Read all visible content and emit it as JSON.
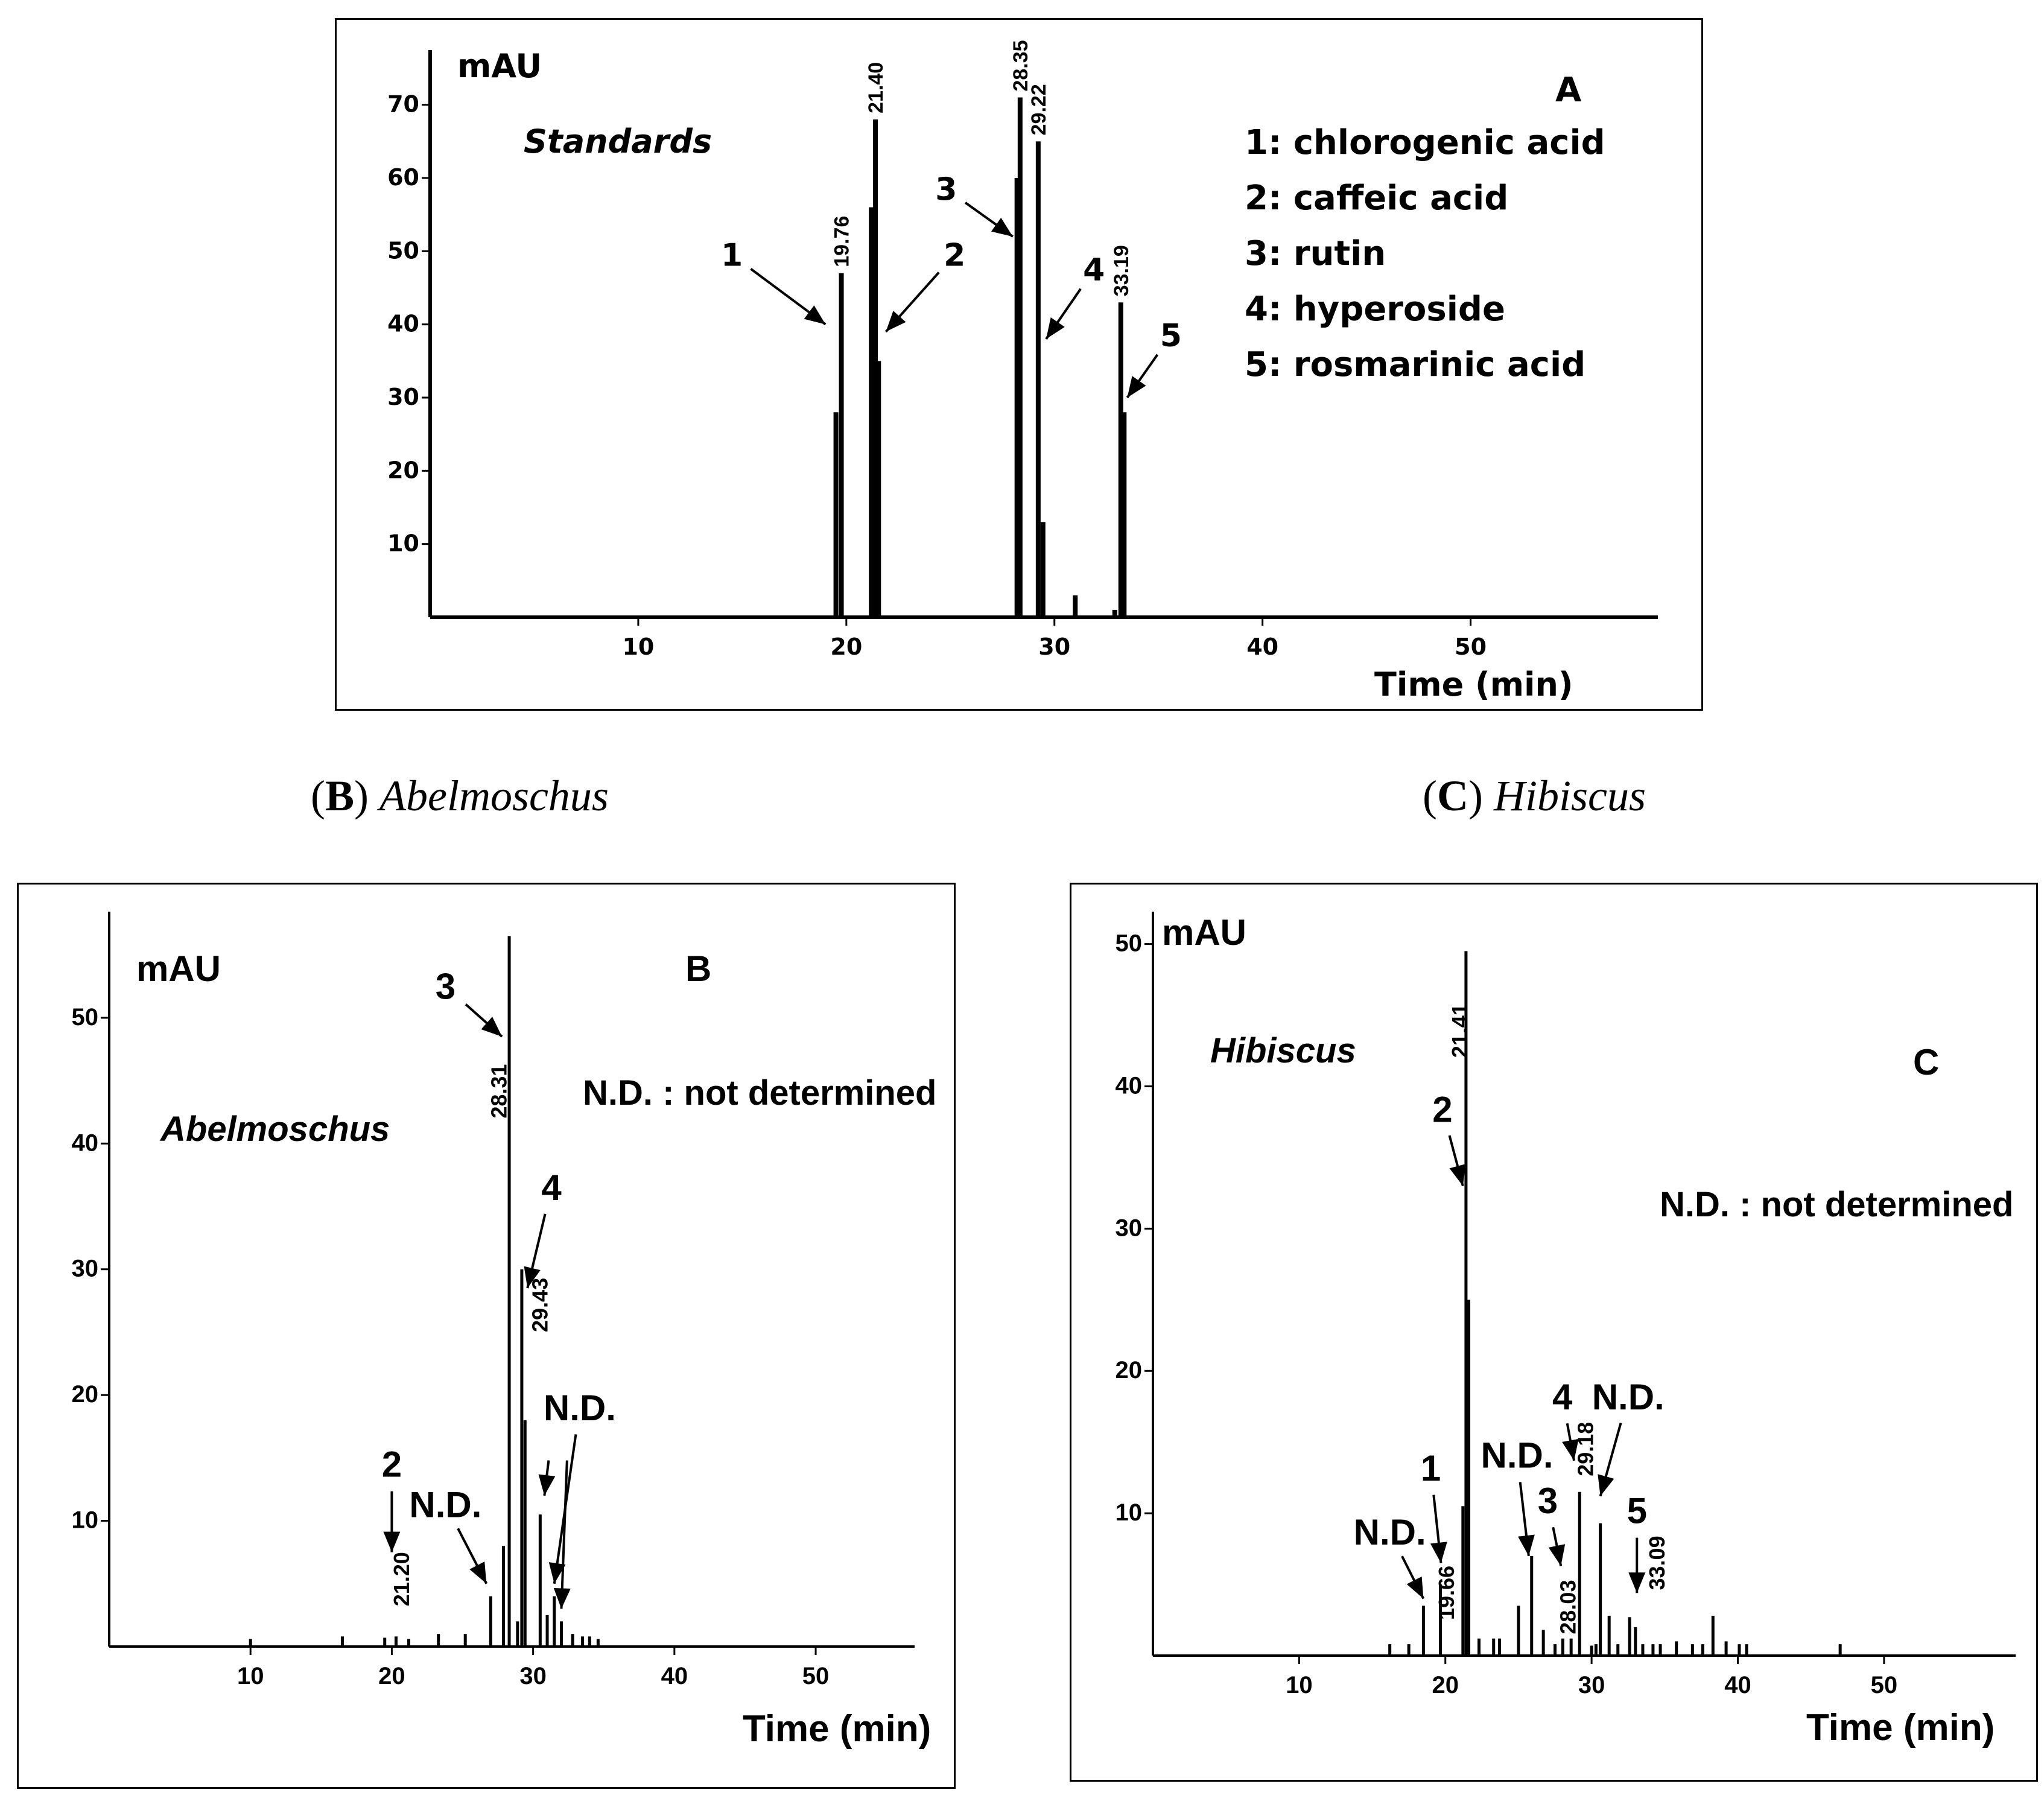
{
  "captions": {
    "b": {
      "open": "(",
      "letter": "B",
      "close": ")",
      "name": "Abelmoschus"
    },
    "c": {
      "open": "(",
      "letter": "C",
      "close": ")",
      "name": "Hibiscus"
    }
  },
  "chart_data": [
    {
      "type": "bar",
      "panel_letter": "A",
      "sample_label": "Standards",
      "ylabel": "mAU",
      "xlabel": "Time (min)",
      "xlim": [
        0,
        59
      ],
      "ylim": [
        0,
        75
      ],
      "xticks": [
        10,
        20,
        30,
        40,
        50
      ],
      "yticks": [
        10,
        20,
        30,
        40,
        50,
        60,
        70
      ],
      "legend": [
        "1: chlorogenic acid",
        "2: caffeic acid",
        "3: rutin",
        "4: hyperoside",
        "5: rosmarinic acid"
      ],
      "peaks": [
        {
          "x": 19.5,
          "y": 28
        },
        {
          "x": 19.76,
          "y": 47
        },
        {
          "x": 21.2,
          "y": 56
        },
        {
          "x": 21.4,
          "y": 68
        },
        {
          "x": 21.55,
          "y": 35
        },
        {
          "x": 28.2,
          "y": 60
        },
        {
          "x": 28.35,
          "y": 71
        },
        {
          "x": 29.22,
          "y": 65
        },
        {
          "x": 29.45,
          "y": 13
        },
        {
          "x": 31.0,
          "y": 3
        },
        {
          "x": 32.9,
          "y": 1
        },
        {
          "x": 33.19,
          "y": 43
        },
        {
          "x": 33.35,
          "y": 28
        }
      ],
      "peak_labels": [
        {
          "x": 19.76,
          "text": "19.76"
        },
        {
          "x": 21.4,
          "text": "21.40"
        },
        {
          "x": 28.35,
          "text": "28.35"
        },
        {
          "x": 29.22,
          "text": "29.22"
        },
        {
          "x": 33.19,
          "text": "33.19"
        }
      ],
      "annotations": [
        {
          "text": "1",
          "tx": 14.5,
          "ty": 48,
          "hx": 19.0,
          "hy": 40
        },
        {
          "text": "2",
          "tx": 25.2,
          "ty": 48,
          "hx": 21.9,
          "hy": 39
        },
        {
          "text": "3",
          "tx": 24.8,
          "ty": 57,
          "hx": 28.0,
          "hy": 52
        },
        {
          "text": "4",
          "tx": 31.9,
          "ty": 46,
          "hx": 29.6,
          "hy": 38
        },
        {
          "text": "5",
          "tx": 35.6,
          "ty": 37,
          "hx": 33.5,
          "hy": 30
        }
      ]
    },
    {
      "type": "bar",
      "panel_letter": "B",
      "sample_label": "Abelmoschus",
      "ylabel": "mAU",
      "xlabel": "Time (min)",
      "note": "N.D. : not determined",
      "xlim": [
        0,
        57
      ],
      "ylim": [
        0,
        57
      ],
      "xticks": [
        10,
        20,
        30,
        40,
        50
      ],
      "yticks": [
        10,
        20,
        30,
        40,
        50
      ],
      "peaks": [
        {
          "x": 10.0,
          "y": 0.6
        },
        {
          "x": 16.5,
          "y": 0.8
        },
        {
          "x": 19.5,
          "y": 0.7
        },
        {
          "x": 20.3,
          "y": 0.8
        },
        {
          "x": 21.2,
          "y": 0.6
        },
        {
          "x": 23.3,
          "y": 1.0
        },
        {
          "x": 25.2,
          "y": 1.0
        },
        {
          "x": 27.0,
          "y": 4.0
        },
        {
          "x": 27.9,
          "y": 8.0
        },
        {
          "x": 28.31,
          "y": 56.5
        },
        {
          "x": 28.9,
          "y": 2.0
        },
        {
          "x": 29.2,
          "y": 30.0
        },
        {
          "x": 29.43,
          "y": 18.0
        },
        {
          "x": 30.5,
          "y": 10.5
        },
        {
          "x": 31.0,
          "y": 2.5
        },
        {
          "x": 31.5,
          "y": 4.0
        },
        {
          "x": 32.0,
          "y": 2.0
        },
        {
          "x": 32.8,
          "y": 1.0
        },
        {
          "x": 33.5,
          "y": 0.8
        },
        {
          "x": 34.0,
          "y": 0.8
        },
        {
          "x": 34.6,
          "y": 0.6
        }
      ],
      "peak_labels": [
        {
          "x": 20.7,
          "text": "21.20",
          "y": 3.2
        },
        {
          "x": 27.6,
          "text": "28.31",
          "y": 42
        },
        {
          "x": 30.5,
          "text": "29.43",
          "y": 25
        }
      ],
      "annotations": [
        {
          "text": "2",
          "tx": 20.0,
          "ty": 13.5,
          "hx": 20.0,
          "hy": 7.5
        },
        {
          "text": "N.D.",
          "tx": 23.8,
          "ty": 10.3,
          "hx": 26.7,
          "hy": 5.0
        },
        {
          "text": "3",
          "tx": 23.8,
          "ty": 51.5,
          "hx": 27.8,
          "hy": 48.5
        },
        {
          "text": "4",
          "tx": 31.3,
          "ty": 35.5,
          "hx": 29.6,
          "hy": 28.5
        },
        {
          "text": "N.D.",
          "tx": 33.3,
          "ty": 18.0,
          "hx": 31.5,
          "hy": 5.0
        }
      ],
      "extra_arrows": [
        {
          "hx": 30.8,
          "hy": 12.0,
          "fx": 31.1,
          "fy": 14.8
        },
        {
          "hx": 32.0,
          "hy": 3.0,
          "fx": 32.4,
          "fy": 14.8
        }
      ]
    },
    {
      "type": "bar",
      "panel_letter": "C",
      "sample_label": "Hibiscus",
      "ylabel": "mAU",
      "xlabel": "Time (min)",
      "note": "N.D. : not determined",
      "xlim": [
        0,
        59
      ],
      "ylim": [
        0,
        51
      ],
      "xticks": [
        10,
        20,
        30,
        40,
        50
      ],
      "yticks": [
        10,
        20,
        30,
        40,
        50
      ],
      "peaks": [
        {
          "x": 16.2,
          "y": 0.8
        },
        {
          "x": 17.5,
          "y": 0.8
        },
        {
          "x": 18.5,
          "y": 3.5
        },
        {
          "x": 19.66,
          "y": 5.0
        },
        {
          "x": 21.2,
          "y": 10.5
        },
        {
          "x": 21.41,
          "y": 49.5
        },
        {
          "x": 21.6,
          "y": 25.0
        },
        {
          "x": 22.3,
          "y": 1.2
        },
        {
          "x": 23.3,
          "y": 1.2
        },
        {
          "x": 23.7,
          "y": 1.2
        },
        {
          "x": 25.0,
          "y": 3.5
        },
        {
          "x": 25.9,
          "y": 7.0
        },
        {
          "x": 26.7,
          "y": 1.8
        },
        {
          "x": 27.5,
          "y": 0.8
        },
        {
          "x": 28.03,
          "y": 1.2
        },
        {
          "x": 28.6,
          "y": 1.2
        },
        {
          "x": 29.18,
          "y": 11.5
        },
        {
          "x": 30.0,
          "y": 0.7
        },
        {
          "x": 30.3,
          "y": 0.8
        },
        {
          "x": 30.6,
          "y": 9.3
        },
        {
          "x": 31.2,
          "y": 2.8
        },
        {
          "x": 31.8,
          "y": 0.8
        },
        {
          "x": 32.6,
          "y": 2.7
        },
        {
          "x": 33.0,
          "y": 2.0
        },
        {
          "x": 33.5,
          "y": 0.8
        },
        {
          "x": 34.2,
          "y": 0.8
        },
        {
          "x": 34.7,
          "y": 0.8
        },
        {
          "x": 35.8,
          "y": 1.0
        },
        {
          "x": 36.9,
          "y": 0.8
        },
        {
          "x": 37.6,
          "y": 0.8
        },
        {
          "x": 38.3,
          "y": 2.8
        },
        {
          "x": 39.2,
          "y": 1.0
        },
        {
          "x": 40.1,
          "y": 0.8
        },
        {
          "x": 40.6,
          "y": 0.8
        },
        {
          "x": 47.0,
          "y": 0.8
        }
      ],
      "peak_labels": [
        {
          "x": 20.1,
          "text": "19.66",
          "y": 2.5
        },
        {
          "x": 21.0,
          "text": "21.41",
          "y": 42
        },
        {
          "x": 28.4,
          "text": "28.03",
          "y": 1.5
        },
        {
          "x": 29.6,
          "text": "29.18",
          "y": 12.6
        },
        {
          "x": 34.5,
          "text": "33.09",
          "y": 4.6
        }
      ],
      "annotations": [
        {
          "text": "N.D.",
          "tx": 16.2,
          "ty": 7.8,
          "hx": 18.5,
          "hy": 4.0
        },
        {
          "text": "1",
          "tx": 19.0,
          "ty": 12.3,
          "hx": 19.7,
          "hy": 6.5
        },
        {
          "text": "2",
          "tx": 19.8,
          "ty": 37.5,
          "hx": 21.2,
          "hy": 33.0
        },
        {
          "text": "N.D.",
          "tx": 24.9,
          "ty": 13.2,
          "hx": 25.7,
          "hy": 7.0
        },
        {
          "text": "3",
          "tx": 27.0,
          "ty": 10.0,
          "hx": 27.9,
          "hy": 6.3
        },
        {
          "text": "4",
          "tx": 28.0,
          "ty": 17.3,
          "hx": 28.8,
          "hy": 13.7
        },
        {
          "text": "N.D.",
          "tx": 32.5,
          "ty": 17.3,
          "hx": 30.6,
          "hy": 11.2
        },
        {
          "text": "5",
          "tx": 33.1,
          "ty": 9.3,
          "hx": 33.1,
          "hy": 4.4
        }
      ]
    }
  ]
}
